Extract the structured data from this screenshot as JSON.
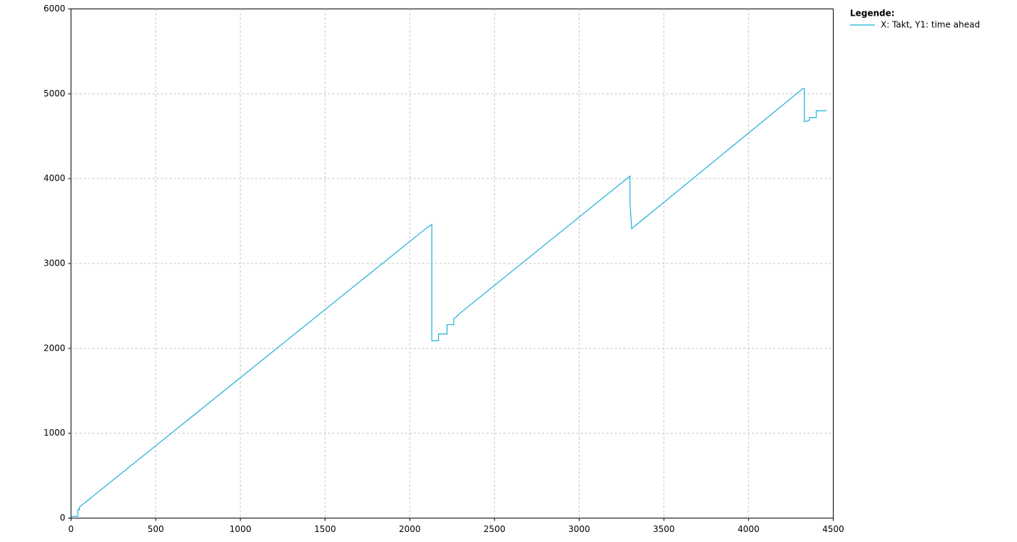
{
  "chart_data": {
    "type": "line",
    "legend_title": "Legende:",
    "legend": "right",
    "grid": true,
    "xlim": [
      0,
      4500
    ],
    "ylim": [
      0,
      6000
    ],
    "xticks": [
      0,
      500,
      1000,
      1500,
      2000,
      2500,
      3000,
      3500,
      4000,
      4500
    ],
    "yticks": [
      0,
      1000,
      2000,
      3000,
      4000,
      5000,
      6000
    ],
    "x": [
      0,
      40,
      40,
      50,
      50,
      2100,
      2130,
      2130,
      2170,
      2170,
      2220,
      2220,
      2260,
      2260,
      2280,
      2300,
      3300,
      3300,
      3310,
      4320,
      4330,
      4330,
      4360,
      4360,
      4400,
      4400,
      4460
    ],
    "series": [
      {
        "name": "X: Takt, Y1: time ahead",
        "color": "#1ab0d8",
        "values": [
          20,
          20,
          100,
          100,
          130,
          3420,
          3460,
          2090,
          2090,
          2170,
          2170,
          2280,
          2280,
          2350,
          2380,
          2420,
          4030,
          3730,
          3410,
          5060,
          5060,
          4670,
          4690,
          4720,
          4720,
          4800,
          4800
        ]
      }
    ]
  }
}
